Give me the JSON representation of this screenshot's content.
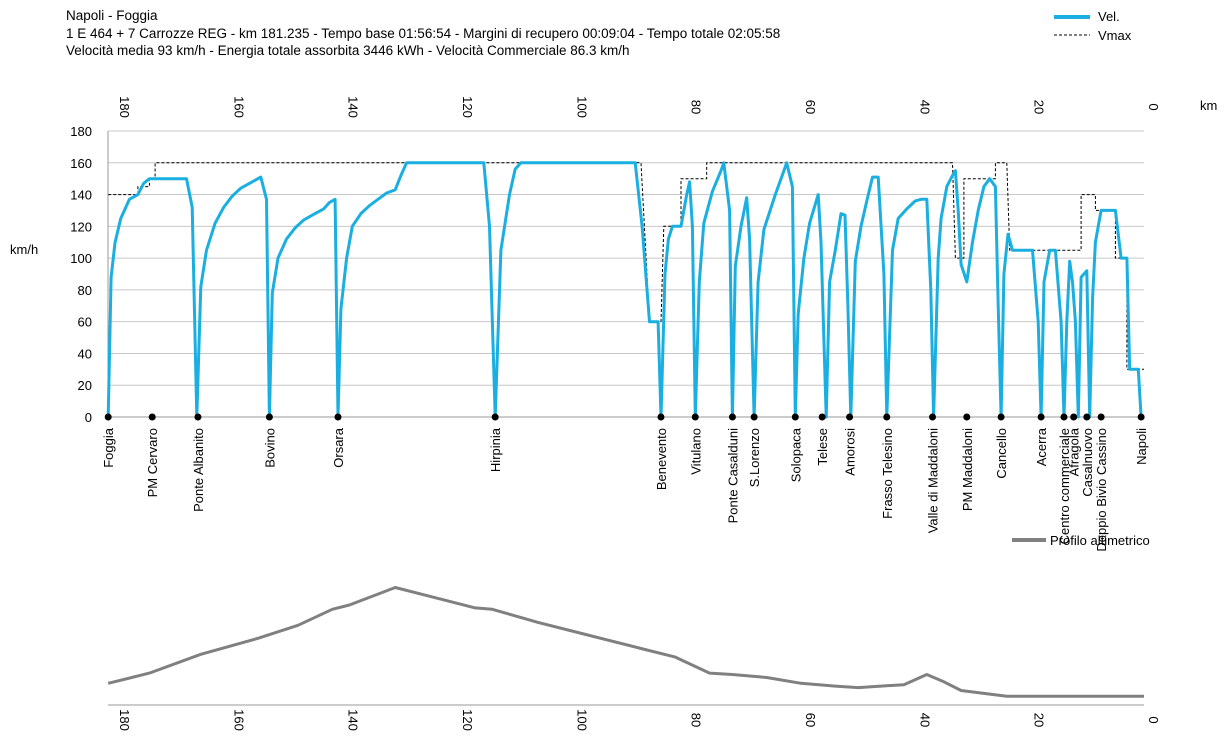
{
  "header": {
    "line1": "Napoli - Foggia",
    "line2": "1 E 464 + 7 Carrozze REG  -  km 181.235  -  Tempo base 01:56:54  -  Margini di recupero 00:09:04  -  Tempo totale 02:05:58",
    "line3": "Velocità media 93 km/h  -  Energia totale assorbita 3446 kWh  -  Velocità Commerciale 86.3 km/h"
  },
  "colors": {
    "speed": "#1AAFE0",
    "vmax": "#000000",
    "altitude": "#808080",
    "grid": "#c8c8c8"
  },
  "chart_data": [
    {
      "type": "line",
      "title": "",
      "xlabel": "km",
      "ylabel": "km/h",
      "xlim": [
        181.235,
        0
      ],
      "ylim": [
        0,
        180
      ],
      "grid": true,
      "legend_position": "top-right",
      "x_ticks": [
        180,
        160,
        140,
        120,
        100,
        80,
        60,
        40,
        20,
        0
      ],
      "y_ticks": [
        0,
        20,
        40,
        60,
        80,
        100,
        120,
        140,
        160,
        180
      ],
      "series": [
        {
          "name": "Vel.",
          "points": [
            [
              181.2,
              0
            ],
            [
              180.7,
              88
            ],
            [
              180,
              110
            ],
            [
              179,
              125
            ],
            [
              177.5,
              137
            ],
            [
              176,
              140
            ],
            [
              175,
              147
            ],
            [
              174,
              150
            ],
            [
              172,
              150
            ],
            [
              170,
              150
            ],
            [
              167.5,
              150
            ],
            [
              166.5,
              132
            ],
            [
              165.7,
              0
            ],
            [
              165,
              82
            ],
            [
              164,
              105
            ],
            [
              162.5,
              122
            ],
            [
              161,
              132
            ],
            [
              159.5,
              139
            ],
            [
              158,
              144
            ],
            [
              156,
              148
            ],
            [
              154.5,
              151
            ],
            [
              153.5,
              137
            ],
            [
              153,
              0
            ],
            [
              152.5,
              78
            ],
            [
              151.5,
              100
            ],
            [
              150,
              112
            ],
            [
              148.5,
              119
            ],
            [
              147,
              124
            ],
            [
              145,
              128
            ],
            [
              143.5,
              131
            ],
            [
              142.5,
              135
            ],
            [
              141.5,
              137
            ],
            [
              141,
              0
            ],
            [
              140.5,
              68
            ],
            [
              139.5,
              100
            ],
            [
              138.5,
              120
            ],
            [
              137,
              128
            ],
            [
              135.5,
              133
            ],
            [
              134,
              137
            ],
            [
              132.5,
              141
            ],
            [
              131,
              143
            ],
            [
              130,
              152
            ],
            [
              129,
              160
            ],
            [
              128,
              160
            ],
            [
              120,
              160
            ],
            [
              115.5,
              160
            ],
            [
              114.5,
              120
            ],
            [
              113.5,
              0
            ],
            [
              112.5,
              105
            ],
            [
              111,
              140
            ],
            [
              110,
              156
            ],
            [
              109,
              160
            ],
            [
              108,
              160
            ],
            [
              100,
              160
            ],
            [
              90,
              160
            ],
            [
              89,
              160
            ],
            [
              87.8,
              120
            ],
            [
              86.5,
              60
            ],
            [
              85,
              60
            ],
            [
              84.5,
              0
            ],
            [
              83.8,
              90
            ],
            [
              83.2,
              112
            ],
            [
              82.5,
              120
            ],
            [
              81,
              120
            ],
            [
              80,
              140
            ],
            [
              79.5,
              148
            ],
            [
              79,
              120
            ],
            [
              78.5,
              0
            ],
            [
              77.8,
              85
            ],
            [
              77,
              122
            ],
            [
              75.5,
              142
            ],
            [
              74,
              155
            ],
            [
              73.5,
              160
            ],
            [
              72.5,
              130
            ],
            [
              72,
              0
            ],
            [
              71.5,
              95
            ],
            [
              70.5,
              120
            ],
            [
              69.5,
              138
            ],
            [
              69,
              112
            ],
            [
              68.2,
              0
            ],
            [
              67.5,
              85
            ],
            [
              66.5,
              118
            ],
            [
              64.5,
              140
            ],
            [
              63,
              155
            ],
            [
              62.5,
              160
            ],
            [
              61.5,
              145
            ],
            [
              61,
              0
            ],
            [
              60.5,
              65
            ],
            [
              59.5,
              100
            ],
            [
              58.5,
              122
            ],
            [
              57,
              140
            ],
            [
              56.5,
              110
            ],
            [
              55.6,
              0
            ],
            [
              55,
              85
            ],
            [
              54,
              105
            ],
            [
              53,
              128
            ],
            [
              52.3,
              127
            ],
            [
              51.8,
              70
            ],
            [
              51.3,
              0
            ],
            [
              50.5,
              98
            ],
            [
              49.5,
              120
            ],
            [
              48.5,
              136
            ],
            [
              47.5,
              151
            ],
            [
              46.5,
              151
            ],
            [
              45.5,
              90
            ],
            [
              45,
              0
            ],
            [
              44,
              105
            ],
            [
              43,
              125
            ],
            [
              41.5,
              131
            ],
            [
              40,
              136
            ],
            [
              39,
              137
            ],
            [
              38,
              137
            ],
            [
              37.3,
              80
            ],
            [
              36.8,
              0
            ],
            [
              36,
              100
            ],
            [
              35.5,
              125
            ],
            [
              34.5,
              145
            ],
            [
              33.5,
              152
            ],
            [
              33,
              155
            ],
            [
              32.5,
              130
            ],
            [
              32,
              96
            ],
            [
              31,
              85
            ],
            [
              30,
              110
            ],
            [
              29,
              130
            ],
            [
              28,
              145
            ],
            [
              27,
              150
            ],
            [
              26,
              145
            ],
            [
              25.5,
              70
            ],
            [
              25,
              0
            ],
            [
              24.5,
              90
            ],
            [
              23.8,
              115
            ],
            [
              23,
              105
            ],
            [
              19.5,
              105
            ],
            [
              18.5,
              60
            ],
            [
              18,
              0
            ],
            [
              17.5,
              85
            ],
            [
              16.5,
              105
            ],
            [
              15.5,
              105
            ],
            [
              14.5,
              60
            ],
            [
              14,
              0
            ],
            [
              13.5,
              60
            ],
            [
              13,
              98
            ],
            [
              12.5,
              85
            ],
            [
              12,
              60
            ],
            [
              11.5,
              0
            ],
            [
              11,
              88
            ],
            [
              10.5,
              90
            ],
            [
              10,
              92
            ],
            [
              9.5,
              0
            ],
            [
              9,
              75
            ],
            [
              8.5,
              110
            ],
            [
              7.5,
              130
            ],
            [
              5,
              130
            ],
            [
              4,
              100
            ],
            [
              3,
              100
            ],
            [
              2.5,
              30
            ],
            [
              1,
              30
            ],
            [
              0.5,
              0
            ]
          ]
        },
        {
          "name": "Vmax",
          "points": [
            [
              181.2,
              140
            ],
            [
              176,
              140
            ],
            [
              176,
              145
            ],
            [
              174,
              145
            ],
            [
              174,
              150
            ],
            [
              173,
              150
            ],
            [
              173,
              160
            ],
            [
              129,
              160
            ],
            [
              100,
              160
            ],
            [
              88,
              160
            ],
            [
              86.5,
              60
            ],
            [
              84.5,
              60
            ],
            [
              84,
              120
            ],
            [
              81,
              120
            ],
            [
              81,
              150
            ],
            [
              76.5,
              150
            ],
            [
              76.5,
              160
            ],
            [
              33.5,
              160
            ],
            [
              33,
              100
            ],
            [
              31.5,
              100
            ],
            [
              31.5,
              150
            ],
            [
              26,
              150
            ],
            [
              26,
              160
            ],
            [
              24,
              160
            ],
            [
              23.5,
              105
            ],
            [
              11,
              105
            ],
            [
              11,
              140
            ],
            [
              8.5,
              140
            ],
            [
              8.5,
              130
            ],
            [
              5,
              130
            ],
            [
              5,
              100
            ],
            [
              3,
              100
            ],
            [
              3,
              30
            ],
            [
              0,
              30
            ]
          ]
        }
      ],
      "stations": [
        {
          "name": "Foggia",
          "km": 181.2
        },
        {
          "name": "PM Cervaro",
          "km": 173.5
        },
        {
          "name": "Ponte Albanito",
          "km": 165.5
        },
        {
          "name": "Bovino",
          "km": 153
        },
        {
          "name": "Orsara",
          "km": 141
        },
        {
          "name": "Hirpinia",
          "km": 113.5
        },
        {
          "name": "Benevento",
          "km": 84.5
        },
        {
          "name": "Vitulano",
          "km": 78.5
        },
        {
          "name": "Ponte Casalduni",
          "km": 72
        },
        {
          "name": "S.Lorenzo",
          "km": 68.2
        },
        {
          "name": "Solopaca",
          "km": 61
        },
        {
          "name": "Telese",
          "km": 56.3
        },
        {
          "name": "Amorosi",
          "km": 51.5
        },
        {
          "name": "Frasso Telesino",
          "km": 45
        },
        {
          "name": "Valle di Maddaloni",
          "km": 37
        },
        {
          "name": "PM Maddaloni",
          "km": 31
        },
        {
          "name": "Cancello",
          "km": 25
        },
        {
          "name": "Acerra",
          "km": 18
        },
        {
          "name": "Centro commerciale",
          "km": 14
        },
        {
          "name": "Afragola",
          "km": 12.3
        },
        {
          "name": "Casalnuovo",
          "km": 10
        },
        {
          "name": "Doppio Bivio Cassino",
          "km": 7.5
        },
        {
          "name": "Napoli",
          "km": 0.5
        }
      ]
    },
    {
      "type": "line",
      "title": "",
      "xlim": [
        181.235,
        0
      ],
      "x_ticks": [
        180,
        160,
        140,
        120,
        100,
        80,
        60,
        40,
        20,
        0
      ],
      "y_scale_relative": [
        0,
        1
      ],
      "legend_position": "top-right",
      "series": [
        {
          "name": "Profilo altimetrico",
          "points": [
            [
              181.2,
              0.15
            ],
            [
              174,
              0.22
            ],
            [
              165,
              0.35
            ],
            [
              155,
              0.46
            ],
            [
              148,
              0.55
            ],
            [
              142,
              0.66
            ],
            [
              139,
              0.69
            ],
            [
              131,
              0.81
            ],
            [
              124,
              0.74
            ],
            [
              117,
              0.67
            ],
            [
              114,
              0.66
            ],
            [
              106,
              0.57
            ],
            [
              98,
              0.49
            ],
            [
              88,
              0.39
            ],
            [
              82,
              0.33
            ],
            [
              76,
              0.22
            ],
            [
              72,
              0.21
            ],
            [
              66,
              0.19
            ],
            [
              60,
              0.15
            ],
            [
              54,
              0.13
            ],
            [
              50,
              0.12
            ],
            [
              46,
              0.13
            ],
            [
              42,
              0.14
            ],
            [
              38,
              0.21
            ],
            [
              35,
              0.16
            ],
            [
              32,
              0.1
            ],
            [
              28,
              0.08
            ],
            [
              24,
              0.06
            ],
            [
              20,
              0.06
            ],
            [
              10,
              0.06
            ],
            [
              0,
              0.06
            ]
          ]
        }
      ]
    }
  ]
}
